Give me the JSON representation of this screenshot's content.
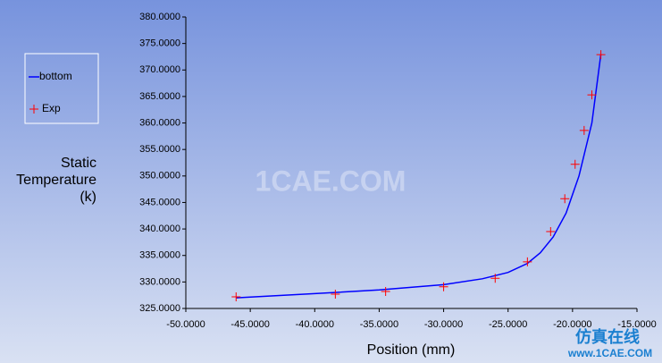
{
  "chart_data": {
    "type": "line",
    "xlabel": "Position (mm)",
    "ylabel": [
      "Static",
      "Temperature",
      "(k)"
    ],
    "watermark": "1CAE.COM",
    "watermark2": [
      "仿真在线",
      "www.1CAE.COM"
    ],
    "xlim": [
      -50,
      -15
    ],
    "ylim": [
      325,
      380
    ],
    "xticks": [
      {
        "value": -50,
        "label": "-50.0000"
      },
      {
        "value": -45,
        "label": "-45.0000"
      },
      {
        "value": -40,
        "label": "-40.0000"
      },
      {
        "value": -35,
        "label": "-35.0000"
      },
      {
        "value": -30,
        "label": "-30.0000"
      },
      {
        "value": -25,
        "label": "-25.0000"
      },
      {
        "value": -20,
        "label": "-20.0000"
      },
      {
        "value": -15,
        "label": "-15.0000"
      }
    ],
    "yticks": [
      {
        "value": 325,
        "label": "325.0000"
      },
      {
        "value": 330,
        "label": "330.0000"
      },
      {
        "value": 335,
        "label": "335.0000"
      },
      {
        "value": 340,
        "label": "340.0000"
      },
      {
        "value": 345,
        "label": "345.0000"
      },
      {
        "value": 350,
        "label": "350.0000"
      },
      {
        "value": 355,
        "label": "355.0000"
      },
      {
        "value": 360,
        "label": "360.0000"
      },
      {
        "value": 365,
        "label": "365.0000"
      },
      {
        "value": 370,
        "label": "370.0000"
      },
      {
        "value": 375,
        "label": "375.0000"
      },
      {
        "value": 380,
        "label": "380.0000"
      }
    ],
    "legend": "upper-left",
    "series": [
      {
        "name": "bottom",
        "color": "#0000ff",
        "marker": "line",
        "x": [
          -46.1,
          -40,
          -35,
          -30,
          -27,
          -25,
          -23.5,
          -22.5,
          -21.5,
          -20.5,
          -19.5,
          -18.5,
          -17.8
        ],
        "values": [
          327.0,
          327.8,
          328.5,
          329.5,
          330.6,
          331.8,
          333.5,
          335.5,
          338.5,
          343.0,
          350.0,
          360.0,
          373.0
        ]
      },
      {
        "name": "Exp",
        "color": "#ff0000",
        "marker": "plus",
        "x": [
          -46.1,
          -38.4,
          -34.5,
          -30.0,
          -26.0,
          -23.5,
          -21.7,
          -20.6,
          -19.8,
          -19.1,
          -18.5,
          -17.8
        ],
        "values": [
          327.2,
          327.7,
          328.2,
          329.1,
          330.7,
          333.8,
          339.5,
          345.7,
          352.2,
          358.6,
          365.3,
          372.9
        ]
      }
    ]
  }
}
